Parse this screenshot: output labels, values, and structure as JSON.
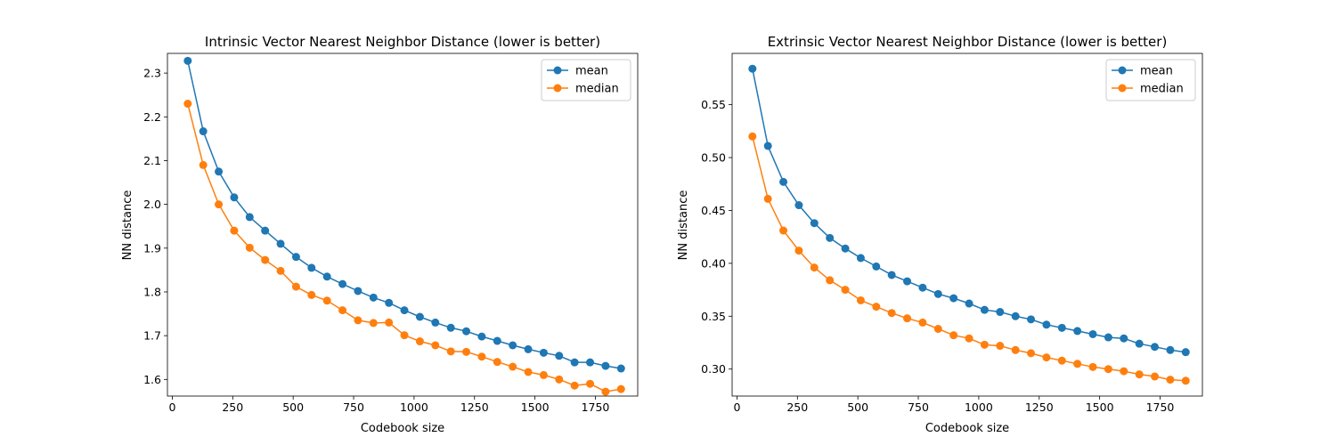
{
  "chart_data": [
    {
      "type": "line",
      "title": "Intrinsic Vector Nearest Neighbor Distance (lower is better)",
      "xlabel": "Codebook size",
      "ylabel": "NN distance",
      "xlim": [
        -20,
        1925
      ],
      "ylim": [
        1.562,
        2.345
      ],
      "xticks": [
        0,
        250,
        500,
        750,
        1000,
        1250,
        1500,
        1750
      ],
      "xtick_labels": [
        "0",
        "250",
        "500",
        "750",
        "1000",
        "1250",
        "1500",
        "1750"
      ],
      "yticks": [
        1.6,
        1.7,
        1.8,
        1.9,
        2.0,
        2.1,
        2.2,
        2.3
      ],
      "ytick_labels": [
        "1.6",
        "1.7",
        "1.8",
        "1.9",
        "2.0",
        "2.1",
        "2.2",
        "2.3"
      ],
      "grid": false,
      "legend": "top-right",
      "x": [
        64,
        128,
        192,
        256,
        320,
        384,
        448,
        512,
        576,
        640,
        704,
        768,
        832,
        896,
        960,
        1024,
        1088,
        1152,
        1216,
        1280,
        1344,
        1408,
        1472,
        1536,
        1600,
        1664,
        1728,
        1792,
        1856
      ],
      "series": [
        {
          "name": "mean",
          "color": "#1f77b4",
          "values": [
            2.328,
            2.167,
            2.075,
            2.016,
            1.971,
            1.94,
            1.91,
            1.88,
            1.855,
            1.835,
            1.818,
            1.802,
            1.787,
            1.775,
            1.758,
            1.743,
            1.73,
            1.718,
            1.71,
            1.698,
            1.688,
            1.678,
            1.669,
            1.661,
            1.654,
            1.639,
            1.639,
            1.631,
            1.625
          ]
        },
        {
          "name": "median",
          "color": "#ff7f0e",
          "values": [
            2.23,
            2.09,
            2.0,
            1.94,
            1.901,
            1.873,
            1.848,
            1.812,
            1.793,
            1.78,
            1.758,
            1.735,
            1.729,
            1.73,
            1.701,
            1.687,
            1.678,
            1.664,
            1.663,
            1.652,
            1.64,
            1.629,
            1.617,
            1.61,
            1.6,
            1.586,
            1.59,
            1.572,
            1.578
          ]
        }
      ]
    },
    {
      "type": "line",
      "title": "Extrinsic Vector Nearest Neighbor Distance (lower is better)",
      "xlabel": "Codebook size",
      "ylabel": "NN distance",
      "xlim": [
        -20,
        1925
      ],
      "ylim": [
        0.2745,
        0.5985
      ],
      "xticks": [
        0,
        250,
        500,
        750,
        1000,
        1250,
        1500,
        1750
      ],
      "xtick_labels": [
        "0",
        "250",
        "500",
        "750",
        "1000",
        "1250",
        "1500",
        "1750"
      ],
      "yticks": [
        0.3,
        0.35,
        0.4,
        0.45,
        0.5,
        0.55
      ],
      "ytick_labels": [
        "0.30",
        "0.35",
        "0.40",
        "0.45",
        "0.50",
        "0.55"
      ],
      "grid": false,
      "legend": "top-right",
      "x": [
        64,
        128,
        192,
        256,
        320,
        384,
        448,
        512,
        576,
        640,
        704,
        768,
        832,
        896,
        960,
        1024,
        1088,
        1152,
        1216,
        1280,
        1344,
        1408,
        1472,
        1536,
        1600,
        1664,
        1728,
        1792,
        1856
      ],
      "series": [
        {
          "name": "mean",
          "color": "#1f77b4",
          "values": [
            0.584,
            0.511,
            0.477,
            0.455,
            0.438,
            0.424,
            0.414,
            0.405,
            0.397,
            0.389,
            0.383,
            0.377,
            0.371,
            0.367,
            0.362,
            0.356,
            0.354,
            0.35,
            0.347,
            0.342,
            0.339,
            0.336,
            0.333,
            0.33,
            0.329,
            0.324,
            0.321,
            0.318,
            0.316
          ]
        },
        {
          "name": "median",
          "color": "#ff7f0e",
          "values": [
            0.52,
            0.461,
            0.431,
            0.412,
            0.396,
            0.384,
            0.375,
            0.365,
            0.359,
            0.353,
            0.348,
            0.344,
            0.338,
            0.332,
            0.329,
            0.323,
            0.322,
            0.318,
            0.315,
            0.311,
            0.308,
            0.305,
            0.302,
            0.3,
            0.298,
            0.295,
            0.293,
            0.29,
            0.289
          ]
        }
      ]
    }
  ]
}
